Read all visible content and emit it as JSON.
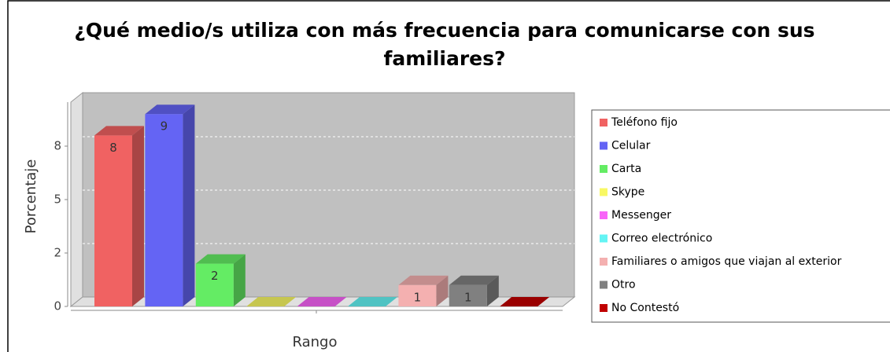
{
  "chart_data": {
    "type": "bar3d",
    "title": "¿Qué medio/s utiliza con más frecuencia para comunicarse con sus familiares?",
    "title_lines": [
      "¿Qué medio/s utiliza con más frecuencia para comunicarse con sus",
      "familiares?"
    ],
    "x_label": "Rango",
    "y_label": "Porcentaje",
    "categories": [
      "Teléfono fijo",
      "Celular",
      "Carta",
      "Skype",
      "Messenger",
      "Correo electrónico",
      "Familiares o amigos que viajan al exterior",
      "Otro",
      "No Contestó"
    ],
    "values": [
      8,
      9,
      2,
      0,
      0,
      0,
      1,
      1,
      0
    ],
    "colors": [
      "#f06262",
      "#6464f4",
      "#64ec64",
      "#f8f864",
      "#f864f8",
      "#64f4f4",
      "#f4b0b0",
      "#808080",
      "#c00000"
    ],
    "ylim": [
      0,
      10
    ],
    "yticks": [
      0,
      {
        "value": 2.5,
        "label": "2"
      },
      5,
      {
        "value": 7.5,
        "label": "8"
      }
    ],
    "grid": true,
    "legend": "right"
  }
}
